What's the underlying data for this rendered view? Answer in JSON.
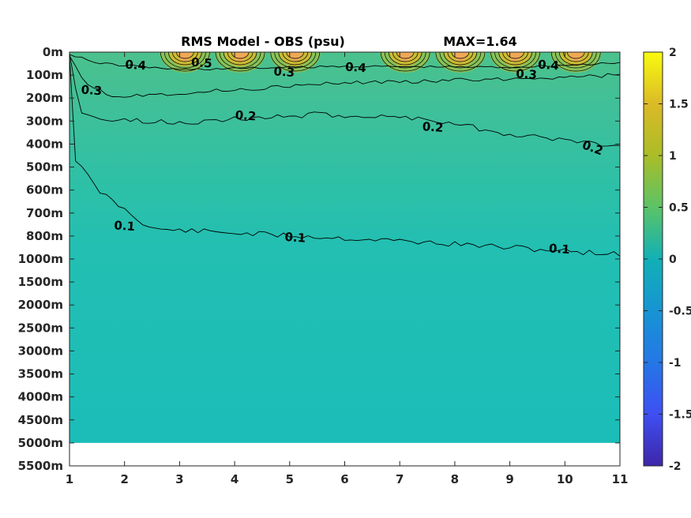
{
  "chart_data": {
    "type": "heatmap",
    "title": "RMS Model - OBS (psu)",
    "max_label": "MAX=1.64",
    "x_ticks": [
      "1",
      "2",
      "3",
      "4",
      "5",
      "6",
      "7",
      "8",
      "9",
      "10",
      "11"
    ],
    "x_range": [
      1,
      11
    ],
    "y_tick_labels": [
      "0m",
      "100m",
      "200m",
      "300m",
      "400m",
      "500m",
      "600m",
      "700m",
      "800m",
      "1000m",
      "1500m",
      "2000m",
      "2500m",
      "3000m",
      "3500m",
      "4000m",
      "4500m",
      "5000m",
      "5500m"
    ],
    "data_bottom_label": "5000m",
    "colorbar": {
      "ticks": [
        "2",
        "1.5",
        "1",
        "0.5",
        "0",
        "-0.5",
        "-1",
        "-1.5",
        "-2"
      ],
      "range": [
        -2,
        2
      ],
      "colormap": "parula"
    },
    "contours": [
      {
        "level": 0.1,
        "label": "0.1",
        "label_x": [
          2.0,
          5.1,
          9.9
        ],
        "label_depth_index": [
          7.6,
          8.1,
          8.6
        ]
      },
      {
        "level": 0.2,
        "label": "0.2",
        "label_x": [
          4.2,
          7.6,
          10.5
        ],
        "label_depth_index": [
          2.8,
          3.3,
          4.2
        ]
      },
      {
        "level": 0.3,
        "label": "0.3",
        "label_x": [
          1.4,
          4.9,
          9.3
        ],
        "label_depth_index": [
          1.7,
          0.9,
          1.0
        ]
      },
      {
        "level": 0.4,
        "label": "0.4",
        "label_x": [
          2.2,
          6.2,
          9.7
        ],
        "label_depth_index": [
          0.6,
          0.7,
          0.6
        ]
      },
      {
        "level": 0.5,
        "label": "0.5",
        "label_x": [
          3.4
        ],
        "label_depth_index": [
          0.5
        ]
      }
    ],
    "max_value": 1.64,
    "grid": false
  }
}
